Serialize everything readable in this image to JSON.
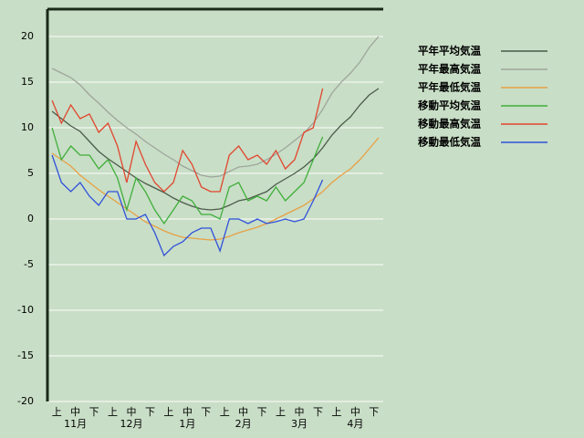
{
  "chart_data": {
    "type": "line",
    "categories": [
      "上",
      null,
      "中",
      null,
      "下",
      null,
      "上",
      null,
      "中",
      null,
      "下",
      null,
      "上",
      null,
      "中",
      null,
      "下",
      null,
      "上",
      null,
      "中",
      null,
      "下",
      null,
      "上",
      null,
      "中",
      null,
      "下",
      null,
      "上",
      null,
      "中",
      null,
      "下",
      null
    ],
    "months": [
      "11月",
      "12月",
      "1月",
      "2月",
      "3月",
      "4月"
    ],
    "ylim": [
      -20,
      23
    ],
    "yticks": [
      -20,
      -15,
      -10,
      -5,
      0,
      5,
      10,
      15,
      20
    ],
    "grid": true,
    "legend": "right",
    "series": [
      {
        "name": "平年平均気温",
        "color": "#4b5b49",
        "values": [
          11.8,
          11,
          10.2,
          9.6,
          8.5,
          7.4,
          6.6,
          5.9,
          5.2,
          4.5,
          3.9,
          3.4,
          2.9,
          2.3,
          1.8,
          1.4,
          1.1,
          1,
          1.1,
          1.5,
          2,
          2.2,
          2.6,
          3,
          3.8,
          4.4,
          5,
          5.7,
          6.6,
          7.8,
          9.2,
          10.3,
          11.2,
          12.5,
          13.6,
          14.3
        ]
      },
      {
        "name": "平年最高気温",
        "color": "#9ea69c",
        "values": [
          16.5,
          16,
          15.5,
          14.7,
          13.6,
          12.7,
          11.7,
          10.8,
          10,
          9.3,
          8.5,
          7.8,
          7.1,
          6.5,
          5.8,
          5.3,
          4.8,
          4.6,
          4.7,
          5.2,
          5.7,
          5.8,
          6,
          6.5,
          7.1,
          7.8,
          8.6,
          9.4,
          10.5,
          12,
          13.8,
          15,
          16,
          17.2,
          18.8,
          20
        ]
      },
      {
        "name": "平年最低気温",
        "color": "#e8a045",
        "values": [
          7.2,
          6.5,
          5.8,
          4.8,
          4,
          3.2,
          2.5,
          1.8,
          1.1,
          0.4,
          -0.3,
          -0.8,
          -1.3,
          -1.7,
          -2,
          -2.1,
          -2.2,
          -2.3,
          -2.2,
          -1.9,
          -1.5,
          -1.2,
          -0.9,
          -0.5,
          0,
          0.5,
          1,
          1.5,
          2.2,
          3,
          4,
          4.8,
          5.5,
          6.5,
          7.7,
          8.9
        ]
      },
      {
        "name": "移動平均気温",
        "color": "#3fae3a",
        "values": [
          10,
          6.5,
          8,
          7,
          7,
          5.5,
          6.5,
          4.5,
          1,
          4.5,
          3,
          1,
          -0.5,
          1,
          2.5,
          2,
          0.5,
          0.5,
          0,
          3.5,
          4,
          2,
          2.5,
          2,
          3.5,
          2,
          3,
          4,
          6.5,
          9,
          null,
          null,
          null,
          null,
          null,
          null
        ]
      },
      {
        "name": "移動最高気温",
        "color": "#e2452f",
        "values": [
          13,
          10.5,
          12.5,
          11,
          11.5,
          9.5,
          10.5,
          8,
          4,
          8.5,
          6,
          4,
          3,
          4,
          7.5,
          6,
          3.5,
          3,
          3,
          7,
          8,
          6.5,
          7,
          6,
          7.5,
          5.5,
          6.5,
          9.5,
          10,
          14.3,
          null,
          null,
          null,
          null,
          null,
          null
        ]
      },
      {
        "name": "移動最低気温",
        "color": "#3050dc",
        "values": [
          7,
          4,
          3,
          4,
          2.5,
          1.5,
          3,
          3,
          0,
          0,
          0.5,
          -1.5,
          -4,
          -3,
          -2.5,
          -1.5,
          -1,
          -1,
          -3.5,
          0,
          0,
          -0.5,
          0,
          -0.5,
          -0.3,
          0,
          -0.3,
          0,
          2,
          4.3,
          null,
          null,
          null,
          null,
          null,
          null
        ]
      }
    ]
  }
}
